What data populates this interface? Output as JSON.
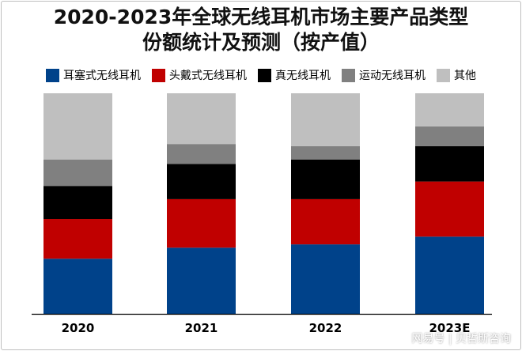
{
  "chart_data": {
    "type": "bar",
    "stacked": true,
    "title": "2020-2023年全球无线耳机市场主要产品类型份额统计及预测（按产值）",
    "title_lines": [
      "2020-2023年全球无线耳机市场主要产品类型",
      "份额统计及预测（按产值）"
    ],
    "categories": [
      "2020",
      "2021",
      "2022",
      "2023E"
    ],
    "ylim": [
      0,
      100
    ],
    "grid": false,
    "legend_position": "top",
    "series": [
      {
        "name": "耳塞式无线耳机",
        "color": "#00428a",
        "values": [
          25,
          30,
          31.5,
          35
        ]
      },
      {
        "name": "头戴式无线耳机",
        "color": "#c00000",
        "values": [
          18,
          22,
          20.5,
          25
        ]
      },
      {
        "name": "真无线耳机",
        "color": "#000000",
        "values": [
          15,
          16,
          18,
          16
        ]
      },
      {
        "name": "运动无线耳机",
        "color": "#808080",
        "values": [
          12,
          9,
          6,
          9
        ]
      },
      {
        "name": "其他",
        "color": "#bfbfbf",
        "values": [
          30,
          23,
          24,
          15
        ]
      }
    ]
  },
  "watermark": "网易号 | 贝哲斯咨询"
}
